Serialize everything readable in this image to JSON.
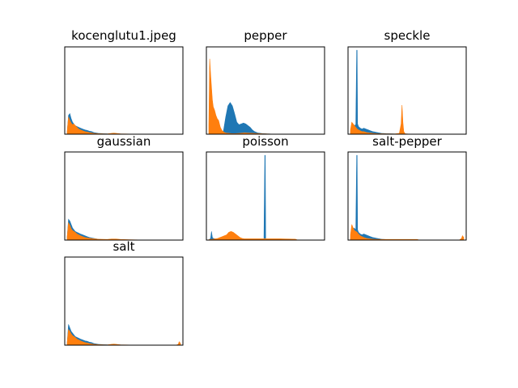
{
  "figure": {
    "background": "#ffffff",
    "series_colors": [
      "#1f77b4",
      "#ff7f0e"
    ]
  },
  "chart_data": [
    {
      "type": "area",
      "title": "kocenglutu1.jpeg",
      "xlabel": "",
      "ylabel": "",
      "ticks": "hidden",
      "x_range": [
        0,
        255
      ],
      "series": [
        {
          "color": "#1f77b4",
          "x": [
            0,
            3,
            6,
            9,
            12,
            15,
            18,
            22,
            26,
            30,
            35,
            40,
            45,
            50,
            55,
            60,
            65,
            70,
            80,
            90,
            110,
            130,
            160,
            200,
            240,
            255
          ],
          "y": [
            0.02,
            0.22,
            0.24,
            0.18,
            0.14,
            0.12,
            0.1,
            0.09,
            0.08,
            0.07,
            0.06,
            0.05,
            0.045,
            0.035,
            0.03,
            0.02,
            0.015,
            0.01,
            0.006,
            0.004,
            0.003,
            0.002,
            0.001,
            0,
            0,
            0
          ]
        },
        {
          "color": "#ff7f0e",
          "x": [
            0,
            3,
            6,
            9,
            12,
            15,
            18,
            22,
            26,
            30,
            35,
            40,
            45,
            50,
            60,
            70,
            90,
            100,
            105,
            110,
            120,
            140,
            200,
            255
          ],
          "y": [
            0.03,
            0.2,
            0.16,
            0.13,
            0.11,
            0.12,
            0.1,
            0.08,
            0.06,
            0.05,
            0.04,
            0.03,
            0.025,
            0.018,
            0.01,
            0.006,
            0.003,
            0.01,
            0.012,
            0.01,
            0.004,
            0.002,
            0,
            0
          ]
        }
      ]
    },
    {
      "type": "area",
      "title": "pepper",
      "xlabel": "",
      "ylabel": "",
      "ticks": "hidden",
      "x_range": [
        0,
        255
      ],
      "series": [
        {
          "color": "#1f77b4",
          "x": [
            0,
            20,
            28,
            33,
            38,
            43,
            48,
            53,
            58,
            63,
            68,
            73,
            78,
            83,
            88,
            93,
            98,
            103,
            110,
            120,
            130,
            140,
            160,
            200,
            255
          ],
          "y": [
            0,
            0,
            0.01,
            0.04,
            0.2,
            0.33,
            0.37,
            0.33,
            0.24,
            0.14,
            0.11,
            0.12,
            0.13,
            0.12,
            0.1,
            0.08,
            0.05,
            0.03,
            0.015,
            0.008,
            0.004,
            0.002,
            0.001,
            0,
            0
          ]
        },
        {
          "color": "#ff7f0e",
          "x": [
            0,
            2,
            4,
            6,
            8,
            10,
            13,
            16,
            19,
            22,
            26,
            30,
            35,
            40,
            50,
            60,
            70,
            80,
            90,
            100,
            110,
            120,
            140,
            200,
            255
          ],
          "y": [
            0.1,
            0.88,
            0.7,
            0.55,
            0.4,
            0.32,
            0.28,
            0.22,
            0.18,
            0.16,
            0.08,
            0.04,
            0.02,
            0.012,
            0.008,
            0.006,
            0.01,
            0.015,
            0.012,
            0.01,
            0.008,
            0.005,
            0.002,
            0,
            0
          ]
        }
      ]
    },
    {
      "type": "area",
      "title": "speckle",
      "xlabel": "",
      "ylabel": "",
      "ticks": "hidden",
      "x_range": [
        0,
        255
      ],
      "series": [
        {
          "color": "#1f77b4",
          "x": [
            0,
            4,
            8,
            12,
            14,
            15,
            16,
            18,
            22,
            26,
            30,
            35,
            40,
            45,
            50,
            55,
            60,
            70,
            80,
            100,
            150,
            255
          ],
          "y": [
            0.02,
            0.08,
            0.1,
            0.11,
            0.98,
            0.98,
            0.12,
            0.09,
            0.07,
            0.06,
            0.07,
            0.06,
            0.05,
            0.04,
            0.03,
            0.025,
            0.02,
            0.01,
            0.006,
            0.003,
            0.001,
            0
          ]
        },
        {
          "color": "#ff7f0e",
          "x": [
            0,
            3,
            6,
            9,
            12,
            15,
            18,
            22,
            26,
            30,
            36,
            42,
            50,
            60,
            80,
            100,
            110,
            114,
            116,
            118,
            120,
            123,
            130,
            150,
            255
          ],
          "y": [
            0.05,
            0.14,
            0.12,
            0.1,
            0.08,
            0.06,
            0.05,
            0.04,
            0.03,
            0.03,
            0.02,
            0.015,
            0.01,
            0.006,
            0.004,
            0.003,
            0.01,
            0.12,
            0.34,
            0.14,
            0.03,
            0.005,
            0.002,
            0.001,
            0
          ]
        }
      ]
    },
    {
      "type": "area",
      "title": "gaussian",
      "xlabel": "",
      "ylabel": "",
      "ticks": "hidden",
      "x_range": [
        0,
        255
      ],
      "series": [
        {
          "color": "#1f77b4",
          "x": [
            0,
            3,
            6,
            9,
            12,
            15,
            18,
            22,
            26,
            30,
            35,
            40,
            45,
            50,
            55,
            60,
            65,
            70,
            80,
            90,
            110,
            130,
            160,
            200,
            255
          ],
          "y": [
            0.03,
            0.24,
            0.22,
            0.18,
            0.14,
            0.12,
            0.1,
            0.09,
            0.08,
            0.07,
            0.06,
            0.05,
            0.04,
            0.03,
            0.025,
            0.02,
            0.015,
            0.01,
            0.006,
            0.004,
            0.003,
            0.002,
            0.001,
            0,
            0
          ]
        },
        {
          "color": "#ff7f0e",
          "x": [
            0,
            3,
            6,
            9,
            12,
            15,
            18,
            22,
            26,
            30,
            35,
            40,
            45,
            50,
            60,
            70,
            90,
            100,
            110,
            120,
            140,
            160,
            200,
            255
          ],
          "y": [
            0.04,
            0.2,
            0.17,
            0.13,
            0.11,
            0.1,
            0.09,
            0.07,
            0.06,
            0.05,
            0.04,
            0.03,
            0.025,
            0.02,
            0.015,
            0.01,
            0.008,
            0.012,
            0.012,
            0.008,
            0.004,
            0.002,
            0,
            0
          ]
        }
      ]
    },
    {
      "type": "area",
      "title": "poisson",
      "xlabel": "",
      "ylabel": "",
      "ticks": "hidden",
      "x_range": [
        0,
        255
      ],
      "series": [
        {
          "color": "#1f77b4",
          "x": [
            0,
            4,
            6,
            8,
            10,
            14,
            20,
            30,
            40,
            50,
            60,
            70,
            80,
            100,
            124,
            126,
            127,
            128,
            130,
            150,
            200,
            255
          ],
          "y": [
            0,
            0.02,
            0.1,
            0.03,
            0.02,
            0.015,
            0.012,
            0.01,
            0.008,
            0.006,
            0.005,
            0.004,
            0.003,
            0.002,
            0.002,
            0.98,
            0.98,
            0.002,
            0.002,
            0.001,
            0,
            0
          ]
        },
        {
          "color": "#ff7f0e",
          "x": [
            0,
            10,
            20,
            30,
            40,
            45,
            50,
            55,
            60,
            65,
            70,
            75,
            80,
            90,
            100,
            120,
            140,
            160,
            180,
            195,
            200,
            255
          ],
          "y": [
            0.005,
            0.01,
            0.02,
            0.04,
            0.06,
            0.09,
            0.1,
            0.09,
            0.07,
            0.05,
            0.03,
            0.02,
            0.015,
            0.015,
            0.015,
            0.015,
            0.015,
            0.015,
            0.012,
            0.01,
            0,
            0
          ]
        }
      ]
    },
    {
      "type": "area",
      "title": "salt-pepper",
      "xlabel": "",
      "ylabel": "",
      "ticks": "hidden",
      "x_range": [
        0,
        255
      ],
      "series": [
        {
          "color": "#1f77b4",
          "x": [
            0,
            4,
            8,
            12,
            14,
            15,
            16,
            18,
            22,
            26,
            30,
            35,
            40,
            45,
            50,
            55,
            60,
            70,
            80,
            100,
            150,
            255
          ],
          "y": [
            0.02,
            0.1,
            0.14,
            0.12,
            0.98,
            0.98,
            0.12,
            0.09,
            0.07,
            0.06,
            0.07,
            0.06,
            0.05,
            0.04,
            0.03,
            0.025,
            0.02,
            0.01,
            0.006,
            0.003,
            0.001,
            0
          ]
        },
        {
          "color": "#ff7f0e",
          "x": [
            0,
            3,
            6,
            9,
            12,
            15,
            18,
            22,
            26,
            30,
            36,
            42,
            50,
            60,
            80,
            100,
            120,
            150,
            155,
            200,
            245,
            250,
            252,
            255
          ],
          "y": [
            0.06,
            0.18,
            0.14,
            0.11,
            0.1,
            0.09,
            0.07,
            0.05,
            0.04,
            0.03,
            0.02,
            0.015,
            0.01,
            0.008,
            0.008,
            0.008,
            0.008,
            0.008,
            0,
            0,
            0,
            0.02,
            0.05,
            0.03
          ]
        }
      ]
    },
    {
      "type": "area",
      "title": "salt",
      "xlabel": "",
      "ylabel": "",
      "ticks": "hidden",
      "x_range": [
        0,
        255
      ],
      "series": [
        {
          "color": "#1f77b4",
          "x": [
            0,
            3,
            6,
            9,
            12,
            15,
            18,
            22,
            26,
            30,
            35,
            40,
            45,
            50,
            55,
            60,
            65,
            70,
            80,
            90,
            110,
            130,
            160,
            200,
            255
          ],
          "y": [
            0.02,
            0.24,
            0.2,
            0.16,
            0.14,
            0.12,
            0.1,
            0.09,
            0.08,
            0.07,
            0.06,
            0.05,
            0.045,
            0.035,
            0.03,
            0.02,
            0.015,
            0.01,
            0.006,
            0.004,
            0.003,
            0.002,
            0.001,
            0,
            0
          ]
        },
        {
          "color": "#ff7f0e",
          "x": [
            0,
            3,
            6,
            9,
            12,
            15,
            18,
            22,
            26,
            30,
            35,
            40,
            45,
            50,
            60,
            70,
            90,
            100,
            105,
            110,
            120,
            140,
            200,
            245,
            250,
            252,
            255
          ],
          "y": [
            0.03,
            0.18,
            0.16,
            0.13,
            0.11,
            0.1,
            0.09,
            0.07,
            0.06,
            0.05,
            0.04,
            0.03,
            0.025,
            0.018,
            0.01,
            0.006,
            0.003,
            0.01,
            0.012,
            0.01,
            0.004,
            0.002,
            0,
            0,
            0.01,
            0.04,
            0.02
          ]
        }
      ]
    }
  ]
}
